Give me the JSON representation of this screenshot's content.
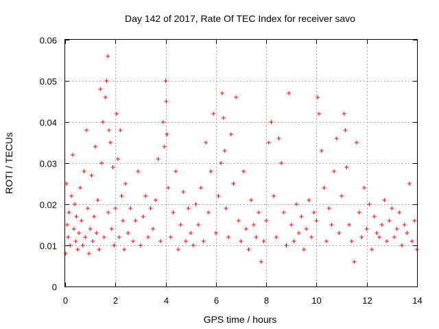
{
  "chart_data": {
    "type": "scatter",
    "title": "Day 142 of 2017, Rate Of TEC Index for receiver savo",
    "xlabel": "GPS time / hours",
    "ylabel": "ROTI / TECUs",
    "xlim": [
      0,
      14
    ],
    "ylim": [
      0,
      0.06
    ],
    "x_ticks": [
      0,
      2,
      4,
      6,
      8,
      10,
      12,
      14
    ],
    "x_tick_labels": [
      "0",
      "2",
      "4",
      "6",
      "8",
      "10",
      "12",
      "14"
    ],
    "y_ticks": [
      0,
      0.01,
      0.02,
      0.03,
      0.04,
      0.05,
      0.06
    ],
    "y_tick_labels": [
      "0",
      "0.01",
      "0.02",
      "0.03",
      "0.04",
      "0.05",
      "0.06"
    ],
    "grid": true,
    "legend": "none",
    "marker": "+",
    "color": "#ff0000",
    "series": [
      {
        "marker": "+",
        "color": "#ff0000",
        "x": [
          0.02,
          0.05,
          0.08,
          0.12,
          0.15,
          0.2,
          0.25,
          0.3,
          0.35,
          0.38,
          0.42,
          0.45,
          0.5,
          0.55,
          0.6,
          0.65,
          0.7,
          0.75,
          0.8,
          0.85,
          0.9,
          0.95,
          1.0,
          1.05,
          1.1,
          1.15,
          1.2,
          1.25,
          1.3,
          1.35,
          1.4,
          1.45,
          1.5,
          1.55,
          1.6,
          1.65,
          1.7,
          1.72,
          1.75,
          1.8,
          1.85,
          1.9,
          1.95,
          2.0,
          2.05,
          2.1,
          2.15,
          2.2,
          2.25,
          2.3,
          2.35,
          2.4,
          2.5,
          2.6,
          2.7,
          2.8,
          2.9,
          3.0,
          3.1,
          3.2,
          3.3,
          3.4,
          3.5,
          3.6,
          3.7,
          3.8,
          3.9,
          3.95,
          4.0,
          4.02,
          4.05,
          4.1,
          4.2,
          4.3,
          4.4,
          4.5,
          4.6,
          4.7,
          4.8,
          4.9,
          5.0,
          5.1,
          5.2,
          5.3,
          5.4,
          5.5,
          5.6,
          5.7,
          5.8,
          5.9,
          6.0,
          6.1,
          6.2,
          6.25,
          6.3,
          6.35,
          6.4,
          6.5,
          6.6,
          6.7,
          6.8,
          6.9,
          7.0,
          7.1,
          7.2,
          7.3,
          7.4,
          7.5,
          7.6,
          7.7,
          7.8,
          7.9,
          8.0,
          8.1,
          8.2,
          8.3,
          8.4,
          8.5,
          8.6,
          8.7,
          8.8,
          8.9,
          9.0,
          9.1,
          9.2,
          9.3,
          9.4,
          9.5,
          9.6,
          9.7,
          9.8,
          9.9,
          10.0,
          10.05,
          10.1,
          10.2,
          10.3,
          10.4,
          10.5,
          10.6,
          10.7,
          10.8,
          10.9,
          11.0,
          11.1,
          11.15,
          11.2,
          11.3,
          11.4,
          11.5,
          11.6,
          11.7,
          11.8,
          11.9,
          12.0,
          12.1,
          12.2,
          12.3,
          12.4,
          12.5,
          12.6,
          12.7,
          12.8,
          12.9,
          13.0,
          13.1,
          13.2,
          13.3,
          13.4,
          13.5,
          13.6,
          13.7,
          13.8,
          13.9,
          14.0
        ],
        "y": [
          0.008,
          0.025,
          0.015,
          0.012,
          0.018,
          0.01,
          0.022,
          0.032,
          0.014,
          0.02,
          0.011,
          0.017,
          0.009,
          0.013,
          0.024,
          0.016,
          0.01,
          0.028,
          0.012,
          0.038,
          0.019,
          0.008,
          0.014,
          0.027,
          0.011,
          0.017,
          0.034,
          0.013,
          0.021,
          0.009,
          0.048,
          0.03,
          0.04,
          0.012,
          0.046,
          0.05,
          0.056,
          0.018,
          0.038,
          0.035,
          0.014,
          0.029,
          0.01,
          0.019,
          0.042,
          0.031,
          0.012,
          0.038,
          0.022,
          0.016,
          0.009,
          0.025,
          0.013,
          0.019,
          0.011,
          0.016,
          0.028,
          0.01,
          0.017,
          0.022,
          0.012,
          0.019,
          0.014,
          0.021,
          0.031,
          0.011,
          0.04,
          0.034,
          0.05,
          0.045,
          0.037,
          0.024,
          0.012,
          0.018,
          0.028,
          0.009,
          0.015,
          0.023,
          0.011,
          0.019,
          0.013,
          0.01,
          0.02,
          0.015,
          0.024,
          0.011,
          0.035,
          0.018,
          0.028,
          0.042,
          0.013,
          0.022,
          0.03,
          0.047,
          0.041,
          0.033,
          0.019,
          0.012,
          0.037,
          0.025,
          0.046,
          0.016,
          0.011,
          0.028,
          0.014,
          0.009,
          0.021,
          0.015,
          0.012,
          0.018,
          0.006,
          0.011,
          0.016,
          0.035,
          0.04,
          0.022,
          0.012,
          0.036,
          0.03,
          0.018,
          0.01,
          0.047,
          0.015,
          0.011,
          0.02,
          0.013,
          0.017,
          0.009,
          0.014,
          0.021,
          0.012,
          0.018,
          0.016,
          0.046,
          0.042,
          0.033,
          0.024,
          0.011,
          0.019,
          0.015,
          0.028,
          0.036,
          0.013,
          0.022,
          0.042,
          0.038,
          0.029,
          0.015,
          0.011,
          0.006,
          0.035,
          0.018,
          0.012,
          0.024,
          0.014,
          0.02,
          0.009,
          0.017,
          0.013,
          0.012,
          0.015,
          0.021,
          0.011,
          0.016,
          0.019,
          0.012,
          0.014,
          0.018,
          0.01,
          0.015,
          0.013,
          0.025,
          0.011,
          0.016,
          0.009
        ]
      }
    ]
  }
}
